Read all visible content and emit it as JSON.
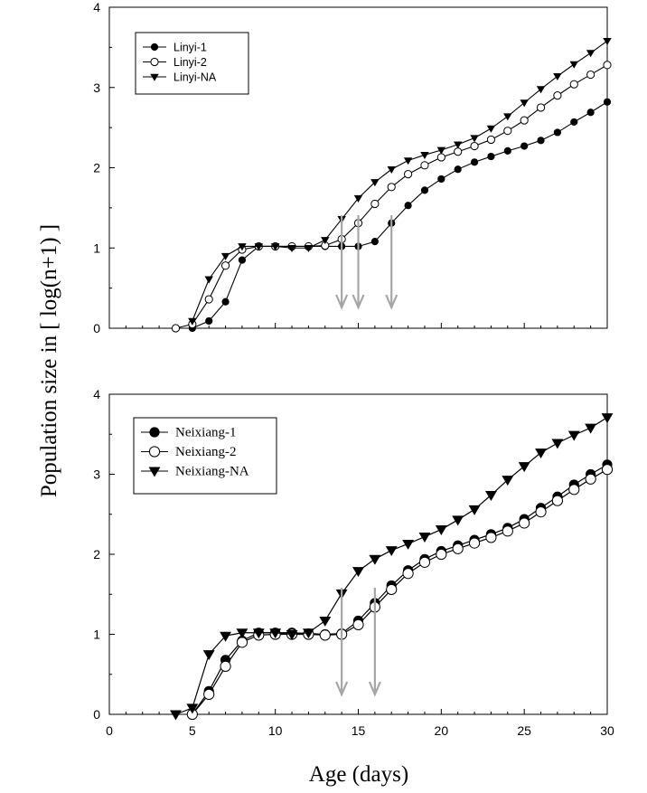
{
  "chart_data": [
    {
      "type": "line",
      "panel": "top",
      "ylim": [
        0,
        4
      ],
      "xlim": [
        0,
        30
      ],
      "yticks": [
        0,
        1,
        2,
        3,
        4
      ],
      "legend_position": "top-left",
      "series": [
        {
          "name": "Linyi-1",
          "marker": "filled-circle",
          "x": [
            4,
            5,
            6,
            7,
            8,
            9,
            10,
            11,
            12,
            13,
            14,
            15,
            16,
            17,
            18,
            19,
            20,
            21,
            22,
            23,
            24,
            25,
            26,
            27,
            28,
            29,
            30
          ],
          "y": [
            0,
            0,
            0.09,
            0.33,
            0.85,
            1.02,
            1.02,
            1.02,
            1.02,
            1.02,
            1.02,
            1.02,
            1.08,
            1.31,
            1.53,
            1.72,
            1.86,
            1.98,
            2.07,
            2.14,
            2.21,
            2.27,
            2.34,
            2.44,
            2.57,
            2.69,
            2.82
          ]
        },
        {
          "name": "Linyi-2",
          "marker": "open-circle",
          "x": [
            4,
            5,
            6,
            7,
            8,
            9,
            10,
            11,
            12,
            13,
            14,
            15,
            16,
            17,
            18,
            19,
            20,
            21,
            22,
            23,
            24,
            25,
            26,
            27,
            28,
            29,
            30
          ],
          "y": [
            0,
            0.05,
            0.36,
            0.78,
            0.98,
            1.02,
            1.02,
            1.02,
            1.02,
            1.03,
            1.11,
            1.31,
            1.55,
            1.76,
            1.92,
            2.03,
            2.13,
            2.2,
            2.27,
            2.35,
            2.46,
            2.59,
            2.75,
            2.9,
            3.04,
            3.16,
            3.28
          ]
        },
        {
          "name": "Linyi-NA",
          "marker": "filled-triangle-down",
          "x": [
            5,
            6,
            7,
            8,
            9,
            10,
            11,
            12,
            13,
            14,
            15,
            16,
            17,
            18,
            19,
            20,
            21,
            22,
            23,
            24,
            25,
            26,
            27,
            28,
            29,
            30
          ],
          "y": [
            0.09,
            0.61,
            0.9,
            1.02,
            1.02,
            1.02,
            1.0,
            1.0,
            1.1,
            1.36,
            1.62,
            1.82,
            1.98,
            2.09,
            2.16,
            2.22,
            2.29,
            2.37,
            2.49,
            2.64,
            2.81,
            2.98,
            3.14,
            3.29,
            3.43,
            3.58
          ]
        }
      ],
      "arrows_x": [
        14,
        15,
        17
      ]
    },
    {
      "type": "line",
      "panel": "bottom",
      "ylim": [
        0,
        4
      ],
      "xlim": [
        0,
        30
      ],
      "yticks": [
        0,
        1,
        2,
        3,
        4
      ],
      "xticks": [
        0,
        5,
        10,
        15,
        20,
        25,
        30
      ],
      "legend_position": "top-left",
      "series": [
        {
          "name": "Neixiang-1",
          "marker": "filled-circle",
          "x": [
            5,
            6,
            7,
            8,
            9,
            10,
            11,
            12,
            13,
            14,
            15,
            16,
            17,
            18,
            19,
            20,
            21,
            22,
            23,
            24,
            25,
            26,
            27,
            28,
            29,
            30
          ],
          "y": [
            0,
            0.29,
            0.68,
            0.92,
            1.02,
            1.02,
            1.02,
            1.01,
            1.0,
            1.01,
            1.17,
            1.39,
            1.61,
            1.8,
            1.94,
            2.04,
            2.11,
            2.18,
            2.25,
            2.33,
            2.44,
            2.58,
            2.72,
            2.87,
            3.0,
            3.12
          ]
        },
        {
          "name": "Neixiang-2",
          "marker": "open-circle",
          "x": [
            5,
            6,
            7,
            8,
            9,
            10,
            11,
            12,
            13,
            14,
            15,
            16,
            17,
            18,
            19,
            20,
            21,
            22,
            23,
            24,
            25,
            26,
            27,
            28,
            29,
            30
          ],
          "y": [
            0,
            0.25,
            0.6,
            0.9,
            0.99,
            1.0,
            1.0,
            1.0,
            0.99,
            1.0,
            1.12,
            1.34,
            1.56,
            1.76,
            1.9,
            2.0,
            2.07,
            2.14,
            2.21,
            2.29,
            2.39,
            2.53,
            2.67,
            2.81,
            2.94,
            3.06
          ]
        },
        {
          "name": "Neixiang-NA",
          "marker": "filled-triangle-down",
          "x": [
            4,
            5,
            6,
            7,
            8,
            9,
            10,
            11,
            12,
            13,
            14,
            15,
            16,
            17,
            18,
            19,
            20,
            21,
            22,
            23,
            24,
            25,
            26,
            27,
            28,
            29,
            30
          ],
          "y": [
            0,
            0.08,
            0.75,
            0.98,
            1.02,
            1.02,
            1.02,
            1.0,
            1.02,
            1.17,
            1.51,
            1.79,
            1.94,
            2.05,
            2.13,
            2.22,
            2.31,
            2.43,
            2.56,
            2.74,
            2.93,
            3.1,
            3.27,
            3.39,
            3.49,
            3.58,
            3.71
          ]
        }
      ],
      "arrows_x": [
        14,
        16
      ]
    }
  ],
  "shared": {
    "ylabel": "Population size in [ log(n+1) ]",
    "xlabel": "Age (days)"
  },
  "colors": {
    "line": "#000000",
    "arrow": "#a6a6a6"
  }
}
